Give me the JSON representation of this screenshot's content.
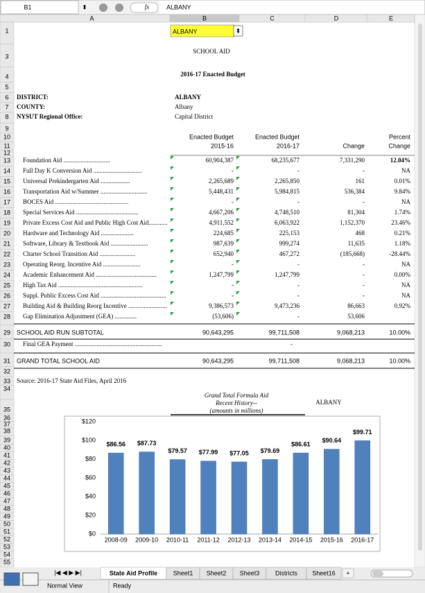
{
  "formula_bar": {
    "cell_ref": "B1",
    "fx": "fx",
    "content": "ALBANY"
  },
  "column_headers": [
    "A",
    "B",
    "C",
    "D",
    "E"
  ],
  "row_headers": [
    1,
    3,
    4,
    5,
    6,
    7,
    8,
    9,
    10,
    11,
    12,
    13,
    14,
    15,
    16,
    17,
    18,
    19,
    20,
    21,
    22,
    23,
    24,
    25,
    26,
    27,
    28,
    29,
    30,
    31,
    32,
    33,
    34,
    35,
    36,
    37,
    38,
    39,
    40,
    41,
    42,
    43,
    44,
    45,
    46,
    47,
    48,
    49,
    50,
    51,
    52,
    53,
    54,
    55
  ],
  "selector": "ALBANY",
  "title": "SCHOOL AID",
  "subtitle": "2016-17 Enacted Budget",
  "district_info": [
    {
      "label": "DISTRICT:",
      "value": "ALBANY"
    },
    {
      "label": "COUNTY:",
      "value": "Albany"
    },
    {
      "label": "NYSUT Regional Office:",
      "value": "Capital District"
    }
  ],
  "table": {
    "header": [
      [
        "Enacted Budget",
        "2015-16"
      ],
      [
        "Enacted Budget",
        "2016-17"
      ],
      [
        "Change"
      ],
      [
        "Percent",
        "Change"
      ]
    ],
    "rows": [
      [
        "Foundation Aid ..............................",
        "60,904,387",
        "68,235,677",
        "7,331,290",
        "12.04%"
      ],
      [
        "Full Day K Conversion Aid ...............................",
        "-",
        "-",
        "-",
        "NA"
      ],
      [
        "Universal Prekindergarten Aid ...................",
        "2,265,689",
        "2,265,850",
        "161",
        "0.01%"
      ],
      [
        "Transportation Aid w/Summer ..............................",
        "5,448,431",
        "5,984,815",
        "536,384",
        "9.84%"
      ],
      [
        "BOCES Aid ...............................................",
        "-",
        "-",
        "-",
        "NA"
      ],
      [
        "Special Services Aid ........................................",
        "4,667,206",
        "4,748,510",
        "81,304",
        "1.74%"
      ],
      [
        "Private Excess Cost Aid and Public High Cost Aid............",
        "4,911,552",
        "6,063,922",
        "1,152,370",
        "23.46%"
      ],
      [
        "Hardware and Technology Aid .....................",
        "224,685",
        "225,153",
        "468",
        "0.21%"
      ],
      [
        "Software, Library & Textbook Aid ........................",
        "987,639",
        "999,274",
        "11,635",
        "1.18%"
      ],
      [
        "Charter School Transition Aid .......................",
        "652,940",
        "467,272",
        "(185,668)",
        "-28.44%"
      ],
      [
        "Operating Reorg. Incentive Aid ........................",
        "-",
        "-",
        "-",
        "NA"
      ],
      [
        "Academic Enhancement Aid .......................................",
        "1,247,799",
        "1,247,799",
        "-",
        "0.00%"
      ],
      [
        "High Tax Aid ......................................................",
        "-",
        "-",
        "-",
        "NA"
      ],
      [
        "Suppl. Public Excess Cost Aid ..........................................",
        "-",
        "-",
        "-",
        "NA"
      ],
      [
        "Building Aid & Building Reorg Incentive .........................",
        "9,386,573",
        "9,473,236",
        "86,663",
        "0.92%"
      ],
      [
        "Gap Elimination Adjustment (GEA) ..............",
        "(53,606)",
        "-",
        "53,606",
        null
      ]
    ]
  },
  "subtotal": [
    "SCHOOL AID RUN SUBTOTAL",
    "90,643,295",
    "99,711,508",
    "9,068,213",
    "10.00%"
  ],
  "final_gea": [
    "Final GEA Payment ........................................................",
    "-"
  ],
  "grand_total": [
    "GRAND TOTAL SCHOOL AID",
    "90,643,295",
    "99,711,508",
    "9,068,213",
    "10.00%"
  ],
  "source": "Source:  2016-17 State Aid Files, April 2016",
  "history": {
    "title": [
      "Grand Total Formula Aid",
      "Recent History--",
      "(amounts in millions)"
    ],
    "district": "ALBANY"
  },
  "chart_data": {
    "type": "bar",
    "categories": [
      "2008-09",
      "2009-10",
      "2010-11",
      "2011-12",
      "2012-13",
      "2013-14",
      "2014-15",
      "2015-16",
      "2016-17"
    ],
    "values": [
      86.56,
      87.73,
      79.57,
      77.99,
      77.05,
      79.69,
      86.61,
      90.64,
      99.71
    ],
    "value_labels": [
      "$86.56",
      "$87.73",
      "$79.57",
      "$77.99",
      "$77.05",
      "$79.69",
      "$86.61",
      "$90.64",
      "$99.71"
    ],
    "color": "#4f81bd",
    "ylim": [
      0,
      120
    ],
    "yticks": [
      {
        "value": 0,
        "label": "$0"
      },
      {
        "value": 20,
        "label": "$20"
      },
      {
        "value": 40,
        "label": "$40"
      },
      {
        "value": 60,
        "label": "$60"
      },
      {
        "value": 80,
        "label": "$80"
      },
      {
        "value": 100,
        "label": "$100"
      },
      {
        "value": 120,
        "label": "$120"
      }
    ],
    "grid": false
  },
  "sheet_tabs": [
    "State Aid Profile",
    "Sheet1",
    "Sheet2",
    "Sheet3",
    "Districts",
    "Sheet16"
  ],
  "new_sheet": "+",
  "status": {
    "view": "Normal View",
    "state": "Ready"
  }
}
